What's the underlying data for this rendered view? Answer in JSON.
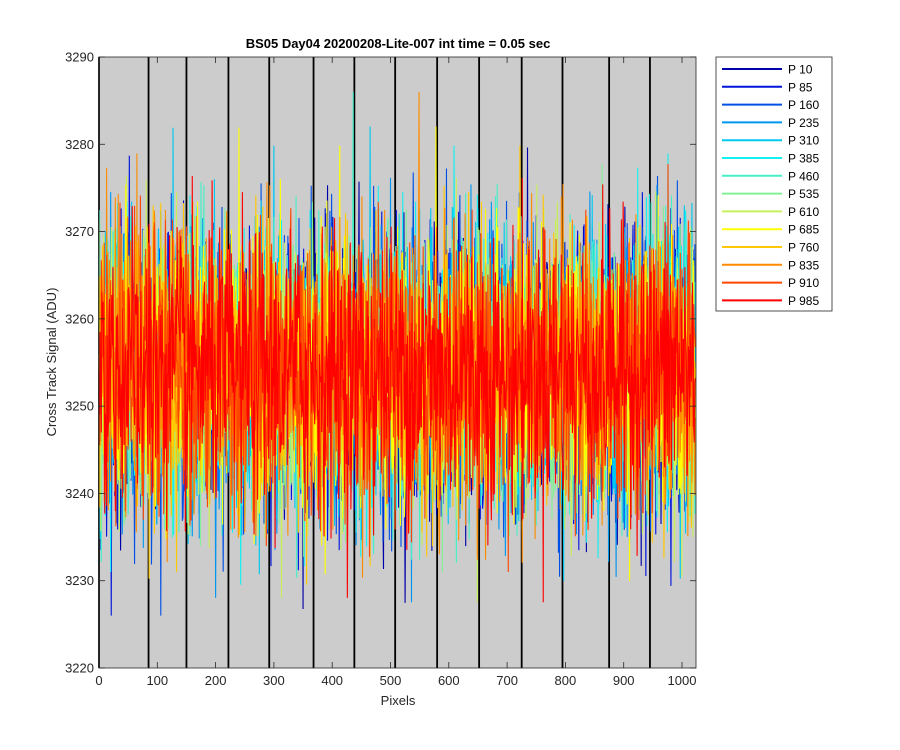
{
  "chart_data": {
    "type": "line",
    "title": "BS05 Day04 20200208-Lite-007 int time = 0.05 sec",
    "xlabel": "Pixels",
    "ylabel": "Cross Track Signal (ADU)",
    "xlim": [
      0,
      1024
    ],
    "ylim": [
      3220,
      3290
    ],
    "xticks": [
      0,
      100,
      200,
      300,
      400,
      500,
      600,
      700,
      800,
      900,
      1000
    ],
    "yticks": [
      3220,
      3230,
      3240,
      3250,
      3260,
      3270,
      3280,
      3290
    ],
    "background_color": "#cccccc",
    "separator_lines_x": [
      0,
      85,
      150,
      222,
      292,
      368,
      438,
      508,
      580,
      652,
      725,
      795,
      875,
      945
    ],
    "legend_location": "outside-top-right",
    "series_summary": {
      "points_per_series": 1024,
      "mean": 3254,
      "typical_range": [
        3236,
        3272
      ],
      "extreme_min": 3226,
      "extreme_max": 3286
    },
    "series": [
      {
        "name": "P 10",
        "color": "#0000aa"
      },
      {
        "name": "P 85",
        "color": "#0014dc"
      },
      {
        "name": "P 160",
        "color": "#0050e6"
      },
      {
        "name": "P 235",
        "color": "#0096f0"
      },
      {
        "name": "P 310",
        "color": "#00c8f0"
      },
      {
        "name": "P 385",
        "color": "#14f0f0"
      },
      {
        "name": "P 460",
        "color": "#46f0c8"
      },
      {
        "name": "P 535",
        "color": "#82f096"
      },
      {
        "name": "P 610",
        "color": "#c8f05a"
      },
      {
        "name": "P 685",
        "color": "#ffff00"
      },
      {
        "name": "P 760",
        "color": "#ffc800"
      },
      {
        "name": "P 835",
        "color": "#ff8c00"
      },
      {
        "name": "P 910",
        "color": "#ff4600"
      },
      {
        "name": "P 985",
        "color": "#ff0000"
      }
    ]
  }
}
